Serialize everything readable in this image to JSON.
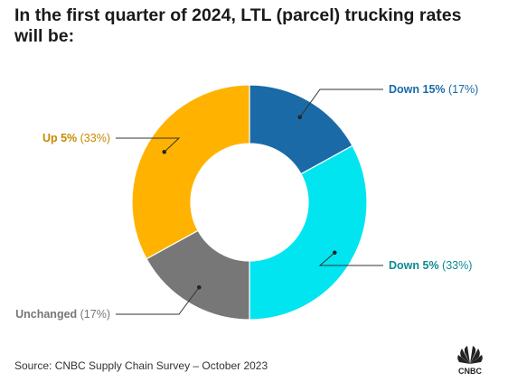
{
  "title": "In the first quarter of 2024, LTL (parcel) trucking rates will be:",
  "source": "Source: CNBC Supply Chain Survey – October 2023",
  "logo_text": "CNBC",
  "chart_data": {
    "type": "pie",
    "title": "In the first quarter of 2024, LTL (parcel) trucking rates will be:",
    "slices": [
      {
        "label": "Down 15%",
        "pct_text": "(17%)",
        "value": 17,
        "color": "#1a6aa7",
        "label_color": "#1a6aa7"
      },
      {
        "label": "Down 5%",
        "pct_text": "(33%)",
        "value": 33,
        "color": "#00e5f0",
        "label_color": "#0d8a91"
      },
      {
        "label": "Unchanged",
        "pct_text": "(17%)",
        "value": 17,
        "color": "#777777",
        "label_color": "#777777"
      },
      {
        "label": "Up 5%",
        "pct_text": "(33%)",
        "value": 33,
        "color": "#ffb200",
        "label_color": "#c68a00"
      }
    ]
  }
}
